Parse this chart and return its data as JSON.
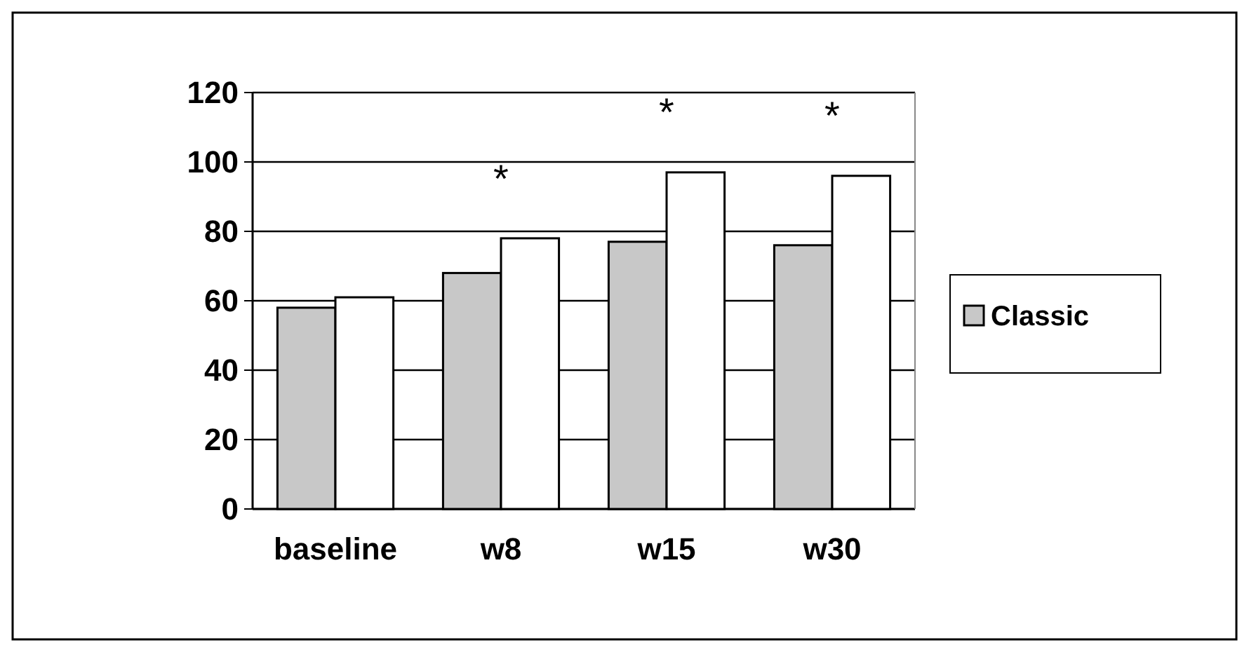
{
  "chart_data": {
    "type": "bar",
    "categories": [
      "baseline",
      "w8",
      "w15",
      "w30"
    ],
    "series": [
      {
        "name": "Classic",
        "color": "#c8c8c8",
        "values": [
          58,
          68,
          77,
          76
        ]
      },
      {
        "color": "#ffffff",
        "values": [
          61,
          78,
          97,
          96
        ]
      }
    ],
    "ylim": [
      0,
      120
    ],
    "yticks": [
      0,
      20,
      40,
      60,
      80,
      100,
      120
    ],
    "grid": "y",
    "legend": "right",
    "annotations": [
      "*",
      "*",
      "*"
    ]
  }
}
